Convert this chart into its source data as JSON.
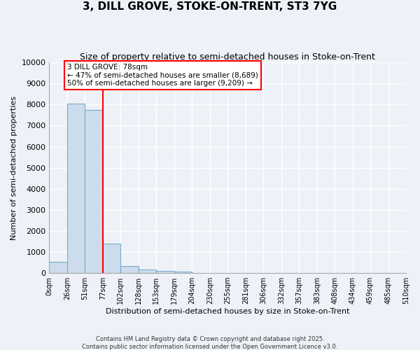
{
  "title": "3, DILL GROVE, STOKE-ON-TRENT, ST3 7YG",
  "subtitle": "Size of property relative to semi-detached houses in Stoke-on-Trent",
  "xlabel": "Distribution of semi-detached houses by size in Stoke-on-Trent",
  "ylabel": "Number of semi-detached properties",
  "bin_edges": [
    0,
    26,
    51,
    77,
    102,
    128,
    153,
    179,
    204,
    230,
    255,
    281,
    306,
    332,
    357,
    383,
    408,
    434,
    459,
    485,
    510
  ],
  "bar_values": [
    550,
    8050,
    7750,
    1400,
    320,
    175,
    100,
    70,
    0,
    0,
    0,
    0,
    0,
    0,
    0,
    0,
    0,
    0,
    0,
    0
  ],
  "bar_color": "#ccdcec",
  "bar_edge_color": "#7aaacc",
  "property_line_x": 77,
  "property_sqm": 78,
  "annotation_text_line1": "3 DILL GROVE: 78sqm",
  "annotation_text_line2": "← 47% of semi-detached houses are smaller (8,689)",
  "annotation_text_line3": "50% of semi-detached houses are larger (9,209) →",
  "ylim": [
    0,
    10000
  ],
  "yticks": [
    0,
    1000,
    2000,
    3000,
    4000,
    5000,
    6000,
    7000,
    8000,
    9000,
    10000
  ],
  "background_color": "#eef2f8",
  "grid_color": "#ffffff",
  "footer_line1": "Contains HM Land Registry data © Crown copyright and database right 2025.",
  "footer_line2": "Contains public sector information licensed under the Open Government Licence v3.0."
}
